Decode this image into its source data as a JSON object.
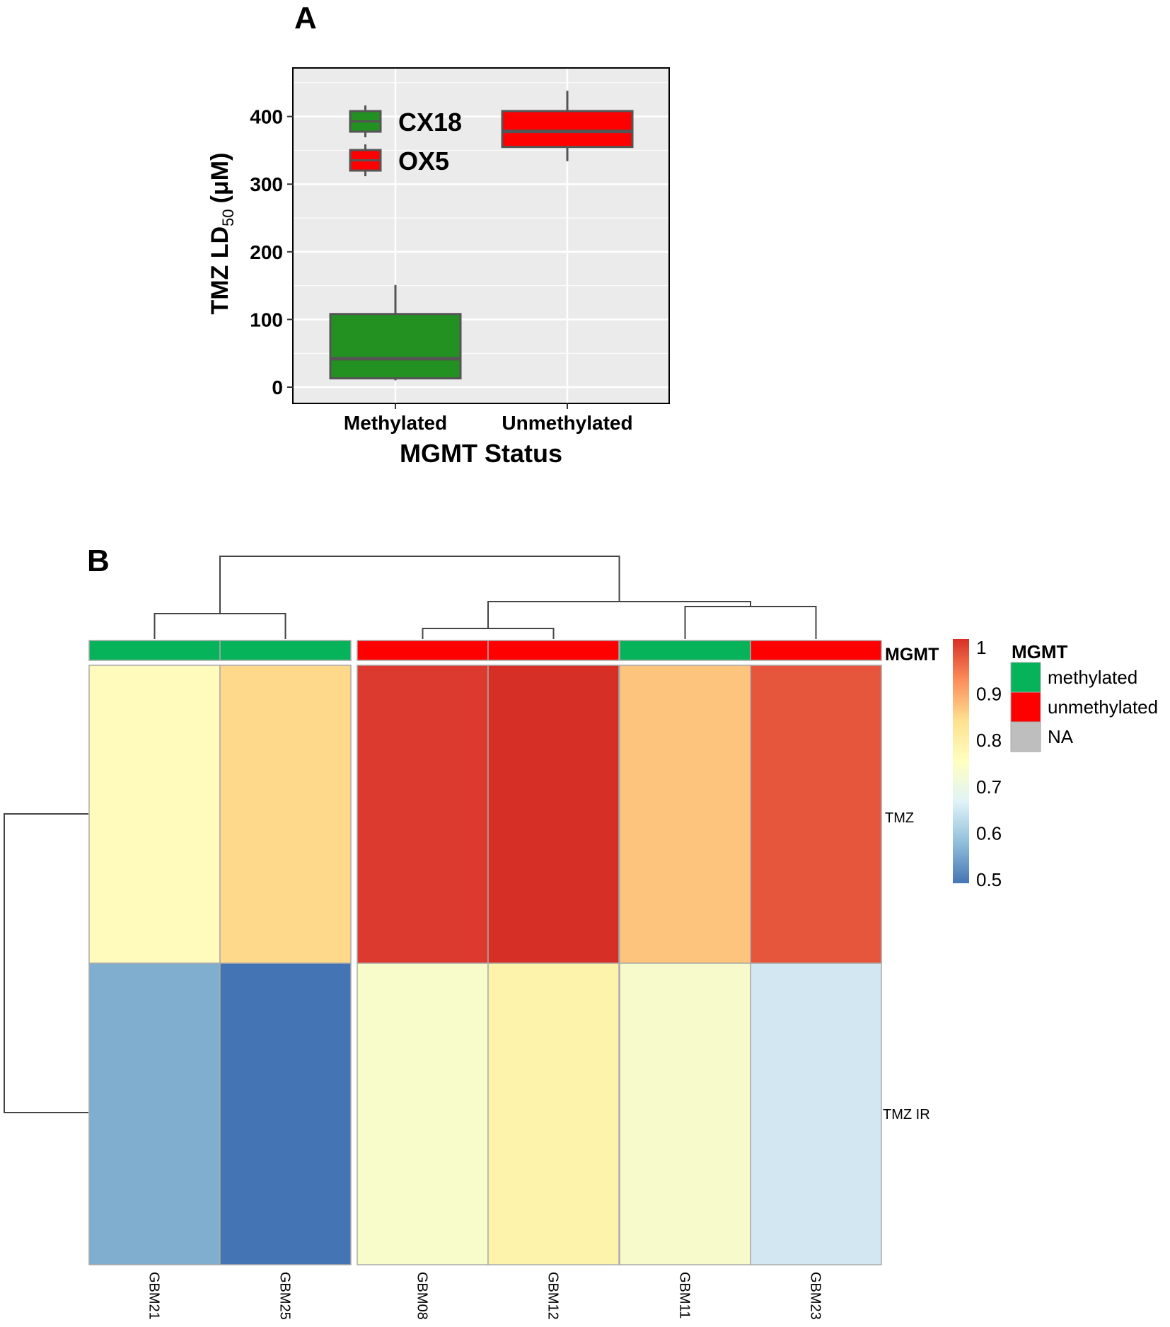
{
  "chart_data": [
    {
      "panel_label": "A",
      "type": "box",
      "xlabel": "MGMT Status",
      "ylabel_main": "TMZ LD",
      "ylabel_subscript": "50",
      "ylabel_unit": "(μM)",
      "categories": [
        "Methylated",
        "Unmethylated"
      ],
      "ylim": [
        -25,
        475
      ],
      "yticks": [
        0,
        100,
        200,
        300,
        400
      ],
      "ytick_labels": [
        "0",
        "100",
        "200",
        "300",
        "400"
      ],
      "grid": true,
      "legend_position": "top-left",
      "series": [
        {
          "name": "CX18",
          "category": "Methylated",
          "color": "#229122",
          "whisker_low": 10,
          "q1": 13,
          "median": 42,
          "q3": 108,
          "whisker_high": 151
        },
        {
          "name": "OX5",
          "category": "Unmethylated",
          "color": "#ff0000",
          "whisker_low": 334,
          "q1": 355,
          "median": 378,
          "q3": 408,
          "whisker_high": 438
        }
      ],
      "legend": [
        {
          "label": "CX18",
          "color": "#229122"
        },
        {
          "label": "OX5",
          "color": "#ff0000"
        }
      ]
    },
    {
      "panel_label": "B",
      "type": "heatmap",
      "columns": [
        "GBM21",
        "GBM25",
        "GBM08",
        "GBM12",
        "GBM11",
        "GBM23"
      ],
      "column_groups": [
        2,
        4
      ],
      "rows": [
        "TMZ",
        "TMZ IR"
      ],
      "values": [
        [
          0.76,
          0.84,
          0.98,
          1.0,
          0.87,
          0.95
        ],
        [
          0.58,
          0.51,
          0.74,
          0.78,
          0.74,
          0.65
        ]
      ],
      "cell_colors": [
        [
          "#fefbbd",
          "#fed98b",
          "#dc3a2e",
          "#d62f26",
          "#fdc47e",
          "#e6563c"
        ],
        [
          "#80aecf",
          "#4574b4",
          "#f8fbca",
          "#fef3aa",
          "#f7fbcb",
          "#d2e7f2"
        ]
      ],
      "annotation": {
        "name": "MGMT",
        "values": [
          "methylated",
          "methylated",
          "unmethylated",
          "unmethylated",
          "methylated",
          "unmethylated"
        ]
      },
      "annotation_legend": {
        "title": "MGMT",
        "items": [
          {
            "label": "methylated",
            "color": "#06b25a"
          },
          {
            "label": "unmethylated",
            "color": "#ff0000"
          },
          {
            "label": "NA",
            "color": "#bebebe"
          }
        ]
      },
      "colorbar": {
        "range": [
          0.5,
          1
        ],
        "tick_labels": [
          "1",
          "0.9",
          "0.8",
          "0.7",
          "0.6",
          "0.5"
        ],
        "tick_values": [
          1,
          0.9,
          0.8,
          0.7,
          0.6,
          0.5
        ],
        "stops": [
          "#4575b4",
          "#91bfdb",
          "#e0f3f8",
          "#ffffbf",
          "#fee090",
          "#fc8d59",
          "#d73027"
        ]
      },
      "column_dendrogram": "((GBM21,GBM25),((GBM08,GBM12),(GBM11,GBM23)))",
      "row_dendrogram": "(TMZ,TMZ IR)"
    }
  ]
}
